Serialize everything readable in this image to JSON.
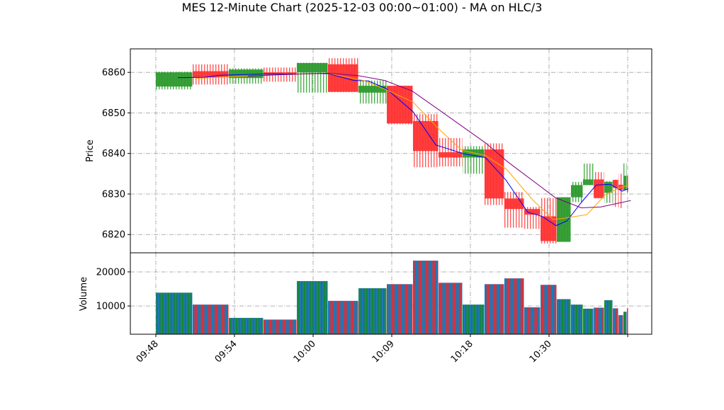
{
  "chart_data": {
    "type": "candlestick",
    "title": "MES 12-Minute Chart (2025-12-03 00:00~01:00) - MA on HLC/3",
    "price_panel": {
      "ylabel": "Price",
      "ylim": [
        6815.5,
        6865.8
      ],
      "yticks": [
        6820,
        6830,
        6840,
        6850,
        6860
      ],
      "grid": true
    },
    "volume_panel": {
      "ylabel": "Volume",
      "ylim": [
        1700,
        25600
      ],
      "yticks": [
        10000,
        20000
      ],
      "ytick_labels": [
        "10000",
        "20000"
      ],
      "grid": true
    },
    "x_axis": {
      "note": "categorical bar index; tick positions in index units",
      "xlim": [
        -0.324,
        6.306
      ],
      "ticks": [
        0,
        1,
        2,
        3,
        4,
        5,
        6
      ],
      "tick_labels": [
        "09:48",
        "09:54",
        "10:00",
        "10:09",
        "10:18",
        "10:30",
        ""
      ]
    },
    "colors": {
      "up": "#2e9a2e",
      "down": "#ff3333",
      "volume": "#1f77b4",
      "ma_fast": "#0000ff",
      "ma_mid": "#ffa500",
      "ma_slow": "#800080",
      "grid": "#b0b0b0"
    },
    "candles": [
      {
        "x0": 0.0,
        "x1": 0.468,
        "open": 6856.5,
        "high": 6860.2,
        "low": 6855.8,
        "close": 6860.0,
        "volume": 13900
      },
      {
        "x0": 0.468,
        "x1": 0.928,
        "open": 6860.3,
        "high": 6862.0,
        "low": 6857.0,
        "close": 6858.8,
        "volume": 10400
      },
      {
        "x0": 0.928,
        "x1": 1.369,
        "open": 6858.6,
        "high": 6861.0,
        "low": 6857.2,
        "close": 6860.7,
        "volume": 6500
      },
      {
        "x0": 1.369,
        "x1": 1.793,
        "open": 6860.0,
        "high": 6861.2,
        "low": 6857.7,
        "close": 6859.4,
        "volume": 6000
      },
      {
        "x0": 1.793,
        "x1": 2.189,
        "open": 6860.0,
        "high": 6862.4,
        "low": 6855.0,
        "close": 6862.3,
        "volume": 17300
      },
      {
        "x0": 2.189,
        "x1": 2.577,
        "open": 6862.0,
        "high": 6863.5,
        "low": 6855.1,
        "close": 6855.2,
        "volume": 11500
      },
      {
        "x0": 2.577,
        "x1": 2.937,
        "open": 6855.0,
        "high": 6858.0,
        "low": 6852.3,
        "close": 6856.7,
        "volume": 15200
      },
      {
        "x0": 2.937,
        "x1": 3.27,
        "open": 6856.7,
        "high": 6856.7,
        "low": 6847.2,
        "close": 6847.4,
        "volume": 16400
      },
      {
        "x0": 3.27,
        "x1": 3.595,
        "open": 6848.0,
        "high": 6849.7,
        "low": 6836.6,
        "close": 6840.6,
        "volume": 23300
      },
      {
        "x0": 3.595,
        "x1": 3.901,
        "open": 6840.3,
        "high": 6843.8,
        "low": 6836.8,
        "close": 6839.0,
        "volume": 16800
      },
      {
        "x0": 3.901,
        "x1": 4.18,
        "open": 6839.0,
        "high": 6841.8,
        "low": 6835.0,
        "close": 6841.0,
        "volume": 10400
      },
      {
        "x0": 4.18,
        "x1": 4.432,
        "open": 6841.0,
        "high": 6842.5,
        "low": 6827.3,
        "close": 6828.9,
        "volume": 16400
      },
      {
        "x0": 4.432,
        "x1": 4.685,
        "open": 6828.9,
        "high": 6830.5,
        "low": 6821.7,
        "close": 6826.3,
        "volume": 18100
      },
      {
        "x0": 4.685,
        "x1": 4.892,
        "open": 6826.3,
        "high": 6826.8,
        "low": 6821.4,
        "close": 6824.9,
        "volume": 9600
      },
      {
        "x0": 4.892,
        "x1": 5.099,
        "open": 6824.5,
        "high": 6829.0,
        "low": 6817.8,
        "close": 6818.4,
        "volume": 16200
      },
      {
        "x0": 5.099,
        "x1": 5.279,
        "open": 6818.2,
        "high": 6829.2,
        "low": 6818.2,
        "close": 6829.2,
        "volume": 12000
      },
      {
        "x0": 5.279,
        "x1": 5.432,
        "open": 6829.2,
        "high": 6833.0,
        "low": 6828.0,
        "close": 6832.2,
        "volume": 10400
      },
      {
        "x0": 5.432,
        "x1": 5.568,
        "open": 6832.2,
        "high": 6837.5,
        "low": 6832.2,
        "close": 6833.6,
        "volume": 9200
      },
      {
        "x0": 5.568,
        "x1": 5.703,
        "open": 6833.6,
        "high": 6835.4,
        "low": 6828.9,
        "close": 6829.0,
        "volume": 9500
      },
      {
        "x0": 5.703,
        "x1": 5.811,
        "open": 6830.3,
        "high": 6833.2,
        "low": 6827.8,
        "close": 6833.0,
        "volume": 11700
      },
      {
        "x0": 5.811,
        "x1": 5.883,
        "open": 6833.5,
        "high": 6833.5,
        "low": 6826.8,
        "close": 6831.5,
        "volume": 9300
      },
      {
        "x0": 5.883,
        "x1": 5.946,
        "open": 6832.3,
        "high": 6835.0,
        "low": 6826.5,
        "close": 6831.0,
        "volume": 7300
      },
      {
        "x0": 5.946,
        "x1": 5.991,
        "open": 6831.0,
        "high": 6837.5,
        "low": 6831.0,
        "close": 6834.5,
        "volume": 8300
      },
      {
        "x0": 5.991,
        "x1": 6.009,
        "open": 6834.5,
        "high": 6834.5,
        "low": 6830.0,
        "close": 6830.5,
        "volume": 9300
      }
    ],
    "ma_series": [
      {
        "name": "ma_fast",
        "color": "#0000ff",
        "x": [
          0.28,
          0.63,
          0.81,
          1.37,
          1.8,
          2.19,
          2.52,
          2.7,
          2.93,
          3.27,
          3.56,
          3.92,
          4.19,
          4.45,
          4.73,
          4.91,
          5.09,
          5.23,
          5.41,
          5.6,
          5.78,
          5.93,
          6.01
        ],
        "y": [
          6858.7,
          6858.8,
          6859.3,
          6859.6,
          6859.6,
          6859.7,
          6858.0,
          6857.9,
          6856.0,
          6850.3,
          6842.1,
          6839.9,
          6839.0,
          6833.5,
          6825.5,
          6824.5,
          6822.2,
          6823.4,
          6827.9,
          6832.2,
          6832.4,
          6830.7,
          6831.3
        ]
      },
      {
        "name": "ma_mid",
        "color": "#ffa500",
        "x": [
          0.51,
          1.37,
          2.19,
          2.64,
          2.93,
          3.27,
          3.59,
          3.89,
          4.19,
          4.46,
          4.79,
          5.05,
          5.18,
          5.48,
          5.72,
          5.9,
          6.01
        ],
        "y": [
          6858.5,
          6859.3,
          6859.8,
          6858.0,
          6855.7,
          6852.7,
          6846.2,
          6840.8,
          6839.5,
          6836.1,
          6828.6,
          6823.7,
          6824.0,
          6824.9,
          6829.9,
          6831.5,
          6832.2
        ]
      },
      {
        "name": "ma_slow",
        "color": "#800080",
        "x": [
          1.17,
          1.98,
          2.19,
          2.57,
          2.91,
          3.26,
          3.59,
          4.2,
          4.47,
          5.08,
          5.41,
          5.66,
          6.04
        ],
        "y": [
          6859.1,
          6859.7,
          6859.8,
          6859.2,
          6858.0,
          6855.4,
          6850.9,
          6842.5,
          6838.0,
          6829.1,
          6826.6,
          6826.8,
          6828.4
        ]
      }
    ]
  }
}
